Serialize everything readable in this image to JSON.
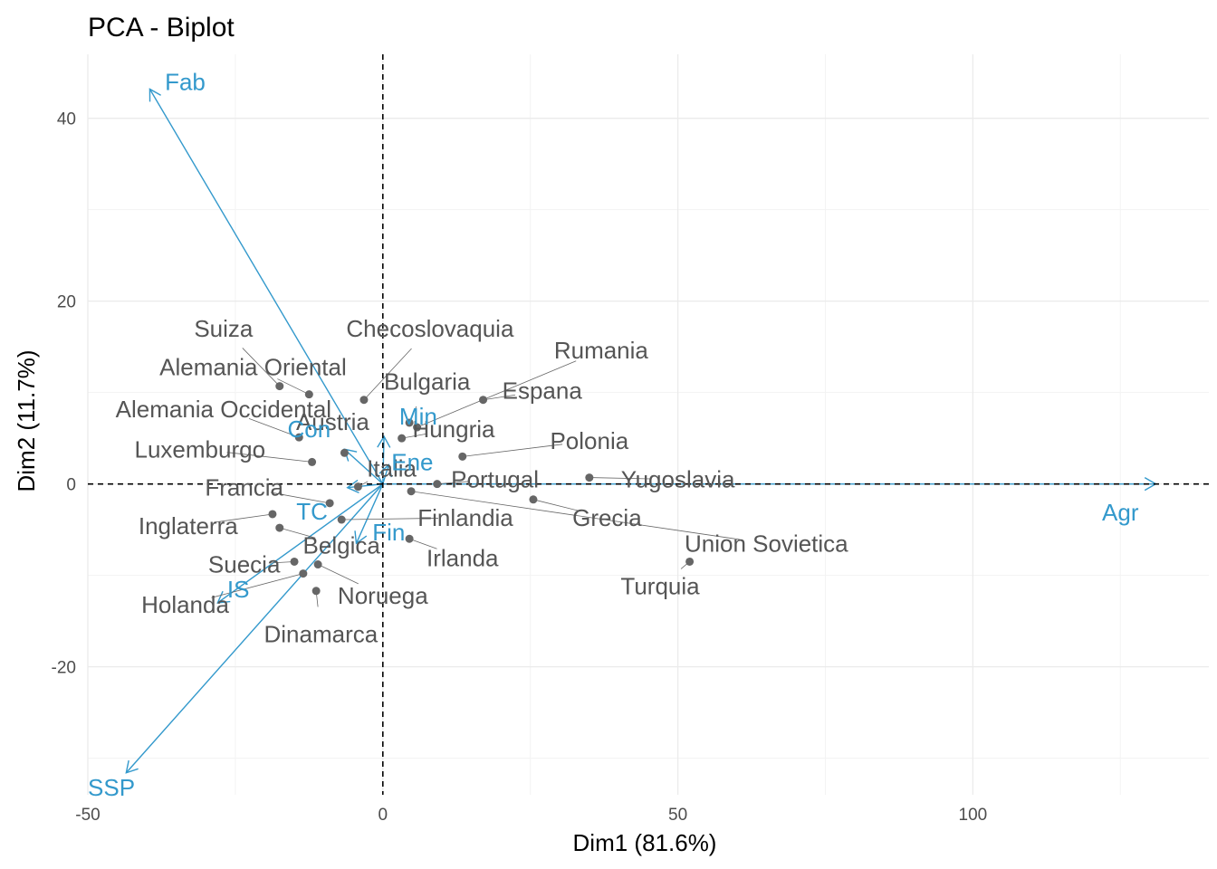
{
  "chart_data": {
    "type": "scatter",
    "title": "PCA - Biplot",
    "xlabel": "Dim1 (81.6%)",
    "ylabel": "Dim2 (11.7%)",
    "xlim": [
      -50,
      140
    ],
    "ylim": [
      -34,
      47
    ],
    "x_ticks": [
      -50,
      0,
      50,
      100
    ],
    "y_ticks": [
      -20,
      0,
      20,
      40
    ],
    "grid": true,
    "point_color": "#666666",
    "arrow_color": "#3399cc",
    "points": [
      {
        "name": "Suiza",
        "x": -17.5,
        "y": 10.7,
        "lx": -27,
        "ly": 17
      },
      {
        "name": "Alemania Oriental",
        "x": -12.5,
        "y": 9.8,
        "lx": -22,
        "ly": 12.8
      },
      {
        "name": "Checoslovaquia",
        "x": -3.2,
        "y": 9.2,
        "lx": 8,
        "ly": 17
      },
      {
        "name": "Bulgaria",
        "x": 4.5,
        "y": 6.7,
        "lx": 7.5,
        "ly": 11.2
      },
      {
        "name": "Rumania",
        "x": 5.8,
        "y": 6.2,
        "lx": 37,
        "ly": 14.6
      },
      {
        "name": "Espana",
        "x": 17,
        "y": 9.2,
        "lx": 27,
        "ly": 10.2
      },
      {
        "name": "Alemania Occidental",
        "x": -14.2,
        "y": 5.1,
        "lx": -27,
        "ly": 8.2
      },
      {
        "name": "Austria",
        "x": -6.5,
        "y": 3.4,
        "lx": -8.5,
        "ly": 6.8
      },
      {
        "name": "Hungria",
        "x": 3.2,
        "y": 5,
        "lx": 12,
        "ly": 6
      },
      {
        "name": "Polonia",
        "x": 13.5,
        "y": 3,
        "lx": 35,
        "ly": 4.7
      },
      {
        "name": "Luxemburgo",
        "x": -12,
        "y": 2.4,
        "lx": -31,
        "ly": 3.8
      },
      {
        "name": "Italia",
        "x": -4.2,
        "y": -0.3,
        "lx": 1.5,
        "ly": 1.7
      },
      {
        "name": "Portugal",
        "x": 9.2,
        "y": 0,
        "lx": 19,
        "ly": 0.5
      },
      {
        "name": "Yugoslavia",
        "x": 35,
        "y": 0.7,
        "lx": 50,
        "ly": 0.5
      },
      {
        "name": "Francia",
        "x": -9,
        "y": -2.1,
        "lx": -23.5,
        "ly": -0.4
      },
      {
        "name": "Grecia",
        "x": 25.5,
        "y": -1.7,
        "lx": 38,
        "ly": -3.7
      },
      {
        "name": "Union Sovietica",
        "x": 4.8,
        "y": -0.8,
        "lx": 65,
        "ly": -6.5
      },
      {
        "name": "Finlandia",
        "x": -7,
        "y": -3.9,
        "lx": 14,
        "ly": -3.7
      },
      {
        "name": "Inglaterra",
        "x": -18.7,
        "y": -3.3,
        "lx": -33,
        "ly": -4.6
      },
      {
        "name": "Belgica",
        "x": -17.5,
        "y": -4.8,
        "lx": -7,
        "ly": -6.7
      },
      {
        "name": "Irlanda",
        "x": 4.5,
        "y": -6,
        "lx": 13.5,
        "ly": -8.1
      },
      {
        "name": "Turquia",
        "x": 52,
        "y": -8.5,
        "lx": 47,
        "ly": -11.2
      },
      {
        "name": "Suecia",
        "x": -15,
        "y": -8.5,
        "lx": -23.5,
        "ly": -8.8
      },
      {
        "name": "Noruega",
        "x": -11,
        "y": -8.8,
        "lx": 0,
        "ly": -12.2
      },
      {
        "name": "Holanda",
        "x": -13.5,
        "y": -9.8,
        "lx": -33.5,
        "ly": -13.2
      },
      {
        "name": "Dinamarca",
        "x": -11.3,
        "y": -11.7,
        "lx": -10.5,
        "ly": -16.4
      }
    ],
    "variables": [
      {
        "name": "Fab",
        "x": -39.5,
        "y": 43.2,
        "lx": -33.5,
        "ly": 44
      },
      {
        "name": "SSP",
        "x": -43.5,
        "y": -31.6,
        "lx": -46,
        "ly": -33.2
      },
      {
        "name": "Agr",
        "x": 131,
        "y": 0,
        "lx": 125,
        "ly": -3.1
      },
      {
        "name": "Min",
        "x": 0.2,
        "y": 5.2,
        "lx": 6,
        "ly": 7.4
      },
      {
        "name": "Con",
        "x": -6.5,
        "y": 3.8,
        "lx": -12.5,
        "ly": 6
      },
      {
        "name": "Ene",
        "x": 1,
        "y": 2.1,
        "lx": 5,
        "ly": 2.4
      },
      {
        "name": "TC",
        "x": -6,
        "y": -0.4,
        "lx": -12,
        "ly": -3
      },
      {
        "name": "Fin",
        "x": -4.5,
        "y": -6.5,
        "lx": 1,
        "ly": -5.3
      },
      {
        "name": "IS",
        "x": -28,
        "y": -13,
        "lx": -24.5,
        "ly": -11.5
      }
    ]
  }
}
